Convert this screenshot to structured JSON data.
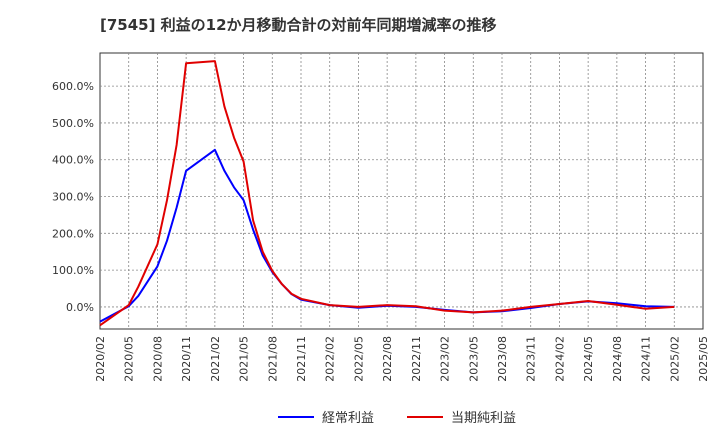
{
  "chart_data": {
    "type": "line",
    "title": "[7545]  利益の12か月移動合計の対前年同期増減率の推移",
    "xlabel": "",
    "ylabel": "",
    "x_ticks": [
      "2020/02",
      "2020/05",
      "2020/08",
      "2020/11",
      "2021/02",
      "2021/05",
      "2021/08",
      "2021/11",
      "2022/02",
      "2022/05",
      "2022/08",
      "2022/11",
      "2023/02",
      "2023/05",
      "2023/08",
      "2023/11",
      "2024/02",
      "2024/05",
      "2024/08",
      "2024/11",
      "2025/02",
      "2025/05"
    ],
    "y_ticks": [
      "0.0%",
      "100.0%",
      "200.0%",
      "300.0%",
      "400.0%",
      "500.0%",
      "600.0%"
    ],
    "y_tick_values": [
      0,
      100,
      200,
      300,
      400,
      500,
      600
    ],
    "ylim": [
      -60,
      690
    ],
    "grid": true,
    "legend_position": "bottom-center",
    "series": [
      {
        "name": "経常利益",
        "color": "#0000ff",
        "points": [
          [
            "2020/02",
            -40
          ],
          [
            "2020/05",
            2
          ],
          [
            "2020/06",
            30
          ],
          [
            "2020/08",
            110
          ],
          [
            "2020/09",
            180
          ],
          [
            "2020/10",
            270
          ],
          [
            "2020/11",
            370
          ],
          [
            "2021/02",
            427
          ],
          [
            "2021/03",
            370
          ],
          [
            "2021/04",
            325
          ],
          [
            "2021/05",
            290
          ],
          [
            "2021/06",
            210
          ],
          [
            "2021/07",
            140
          ],
          [
            "2021/08",
            95
          ],
          [
            "2021/09",
            62
          ],
          [
            "2021/10",
            35
          ],
          [
            "2021/11",
            20
          ],
          [
            "2022/02",
            5
          ],
          [
            "2022/05",
            -2
          ],
          [
            "2022/08",
            3
          ],
          [
            "2022/11",
            0
          ],
          [
            "2023/02",
            -8
          ],
          [
            "2023/05",
            -15
          ],
          [
            "2023/08",
            -12
          ],
          [
            "2023/11",
            -3
          ],
          [
            "2024/02",
            8
          ],
          [
            "2024/05",
            15
          ],
          [
            "2024/08",
            10
          ],
          [
            "2024/11",
            2
          ],
          [
            "2025/02",
            0
          ]
        ]
      },
      {
        "name": "当期純利益",
        "color": "#e00000",
        "points": [
          [
            "2020/02",
            -50
          ],
          [
            "2020/05",
            5
          ],
          [
            "2020/06",
            55
          ],
          [
            "2020/08",
            170
          ],
          [
            "2020/09",
            290
          ],
          [
            "2020/10",
            440
          ],
          [
            "2020/11",
            662
          ],
          [
            "2021/02",
            668
          ],
          [
            "2021/03",
            545
          ],
          [
            "2021/04",
            460
          ],
          [
            "2021/05",
            395
          ],
          [
            "2021/06",
            235
          ],
          [
            "2021/07",
            150
          ],
          [
            "2021/08",
            98
          ],
          [
            "2021/09",
            62
          ],
          [
            "2021/10",
            36
          ],
          [
            "2021/11",
            22
          ],
          [
            "2022/02",
            5
          ],
          [
            "2022/05",
            0
          ],
          [
            "2022/08",
            5
          ],
          [
            "2022/11",
            2
          ],
          [
            "2023/02",
            -10
          ],
          [
            "2023/05",
            -15
          ],
          [
            "2023/08",
            -10
          ],
          [
            "2023/11",
            0
          ],
          [
            "2024/02",
            8
          ],
          [
            "2024/05",
            16
          ],
          [
            "2024/08",
            6
          ],
          [
            "2024/11",
            -5
          ],
          [
            "2025/02",
            0
          ]
        ]
      }
    ]
  }
}
